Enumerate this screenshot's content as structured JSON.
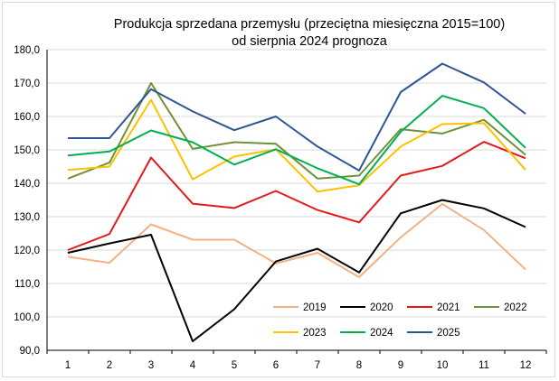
{
  "chart_data": {
    "type": "line",
    "title": "Produkcja sprzedana przemysłu (przeciętna miesięczna 2015=100)",
    "subtitle": "od sierpnia 2024 prognoza",
    "xlabel": "",
    "ylabel": "",
    "categories": [
      "1",
      "2",
      "3",
      "4",
      "5",
      "6",
      "7",
      "8",
      "9",
      "10",
      "11",
      "12"
    ],
    "ylim": [
      90,
      180
    ],
    "yticks": [
      "90,0",
      "100,0",
      "110,0",
      "120,0",
      "130,0",
      "140,0",
      "150,0",
      "160,0",
      "170,0",
      "180,0"
    ],
    "grid": true,
    "legend_position": "bottom-right",
    "series": [
      {
        "name": "2019",
        "color": "#f4b183",
        "values": [
          118.0,
          116.2,
          127.7,
          123.1,
          123.1,
          116.0,
          119.2,
          111.9,
          123.8,
          133.8,
          126.0,
          114.2
        ]
      },
      {
        "name": "2020",
        "color": "#000000",
        "values": [
          119.2,
          122.0,
          124.6,
          92.7,
          102.3,
          116.6,
          120.4,
          113.3,
          131.0,
          135.0,
          132.5,
          126.9
        ]
      },
      {
        "name": "2021",
        "color": "#e31a1c",
        "values": [
          120.0,
          124.8,
          147.7,
          133.9,
          132.6,
          137.7,
          132.0,
          128.3,
          142.3,
          145.2,
          152.4,
          147.5
        ]
      },
      {
        "name": "2022",
        "color": "#70913a",
        "values": [
          141.4,
          146.2,
          170.0,
          150.3,
          152.3,
          151.8,
          141.4,
          142.3,
          156.2,
          154.9,
          159.0,
          148.5
        ]
      },
      {
        "name": "2023",
        "color": "#ffc000",
        "values": [
          144.0,
          145.0,
          165.0,
          141.2,
          148.0,
          150.2,
          137.5,
          139.4,
          151.0,
          157.7,
          158.0,
          144.0
        ]
      },
      {
        "name": "2024",
        "color": "#00b050",
        "values": [
          148.3,
          149.5,
          155.8,
          152.3,
          145.6,
          150.2,
          144.5,
          139.7,
          155.4,
          166.2,
          162.5,
          150.6
        ]
      },
      {
        "name": "2025",
        "color": "#2f5597",
        "values": [
          153.5,
          153.5,
          168.2,
          161.5,
          155.9,
          160.0,
          151.0,
          143.8,
          167.3,
          175.8,
          170.2,
          160.8
        ]
      }
    ]
  }
}
